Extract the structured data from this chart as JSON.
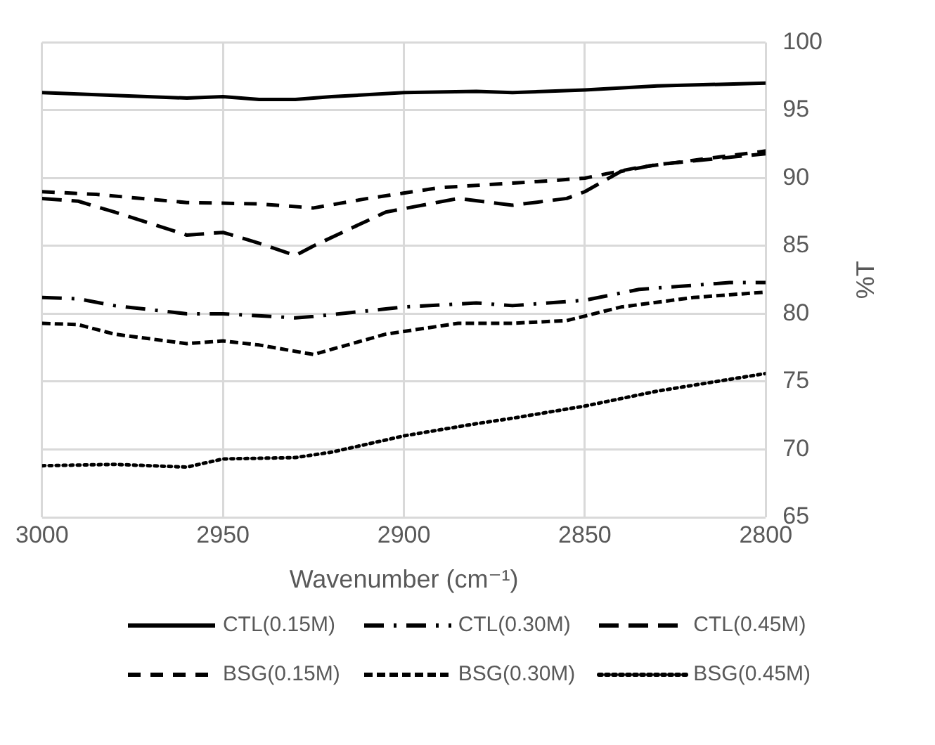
{
  "chart_data": {
    "type": "line",
    "xlabel": "Wavenumber (cm⁻¹)",
    "ylabel": "%T",
    "xlim": [
      3000,
      2800
    ],
    "xticks": [
      3000,
      2950,
      2900,
      2850,
      2800
    ],
    "ylim": [
      65,
      100
    ],
    "yticks": [
      65,
      70,
      75,
      80,
      85,
      90,
      95,
      100
    ],
    "grid": true,
    "legend": "bottom",
    "marker": "none",
    "series": [
      {
        "name": "CTL(0.15M)",
        "color": "#000000",
        "line_style": "solid",
        "x": [
          3000,
          2980,
          2960,
          2950,
          2940,
          2930,
          2920,
          2900,
          2880,
          2870,
          2850,
          2830,
          2800
        ],
        "values": [
          96.3,
          96.1,
          95.9,
          96.0,
          95.8,
          95.8,
          96.0,
          96.3,
          96.4,
          96.3,
          96.5,
          96.8,
          97.0
        ]
      },
      {
        "name": "CTL(0.30M)",
        "color": "#000000",
        "line_style": "dashdot",
        "x": [
          3000,
          2990,
          2980,
          2960,
          2950,
          2930,
          2925,
          2900,
          2880,
          2870,
          2850,
          2835,
          2810,
          2800
        ],
        "values": [
          81.2,
          81.1,
          80.6,
          80.0,
          80.0,
          79.7,
          79.8,
          80.5,
          80.8,
          80.6,
          81.0,
          81.8,
          82.3,
          82.3
        ]
      },
      {
        "name": "CTL(0.45M)",
        "color": "#000000",
        "line_style": "longdash",
        "x": [
          3000,
          2990,
          2980,
          2960,
          2950,
          2940,
          2930,
          2925,
          2905,
          2885,
          2870,
          2855,
          2850,
          2840,
          2830,
          2800
        ],
        "values": [
          88.5,
          88.3,
          87.5,
          85.8,
          86.0,
          85.2,
          84.3,
          85.0,
          87.5,
          88.5,
          88.0,
          88.5,
          89.0,
          90.5,
          91.0,
          91.8
        ]
      },
      {
        "name": "BSG(0.15M)",
        "color": "#000000",
        "line_style": "dashed",
        "x": [
          3000,
          2985,
          2960,
          2940,
          2925,
          2910,
          2890,
          2860,
          2850,
          2835,
          2800
        ],
        "values": [
          89.0,
          88.8,
          88.2,
          88.1,
          87.8,
          88.5,
          89.3,
          89.8,
          90.0,
          90.8,
          92.0
        ]
      },
      {
        "name": "BSG(0.30M)",
        "color": "#000000",
        "line_style": "shortdash",
        "x": [
          3000,
          2990,
          2980,
          2960,
          2950,
          2940,
          2925,
          2905,
          2885,
          2870,
          2855,
          2840,
          2820,
          2800
        ],
        "values": [
          79.3,
          79.2,
          78.5,
          77.8,
          78.0,
          77.7,
          77.0,
          78.5,
          79.3,
          79.3,
          79.5,
          80.5,
          81.2,
          81.6
        ]
      },
      {
        "name": "BSG(0.45M)",
        "color": "#000000",
        "line_style": "dotted",
        "x": [
          3000,
          2980,
          2960,
          2950,
          2930,
          2920,
          2900,
          2880,
          2870,
          2850,
          2830,
          2800
        ],
        "values": [
          68.8,
          68.9,
          68.7,
          69.3,
          69.4,
          69.8,
          71.0,
          71.9,
          72.3,
          73.2,
          74.3,
          75.6
        ]
      }
    ]
  }
}
